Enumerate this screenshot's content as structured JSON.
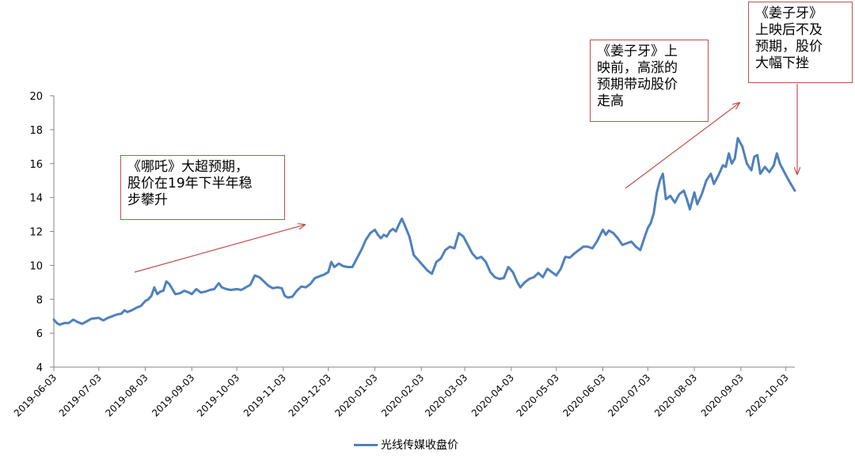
{
  "chart_data": {
    "type": "line",
    "y_axis": {
      "min": 4,
      "max": 20,
      "step": 2,
      "tick_labels": [
        "4",
        "6",
        "8",
        "10",
        "12",
        "14",
        "16",
        "18",
        "20"
      ]
    },
    "x_axis": {
      "start": "2019-06-03",
      "end": "2020-10-09",
      "tick_labels": [
        "2019-06-03",
        "2019-07-03",
        "2019-08-03",
        "2019-09-03",
        "2019-10-03",
        "2019-11-03",
        "2019-12-03",
        "2020-01-03",
        "2020-02-03",
        "2020-03-03",
        "2020-04-03",
        "2020-05-03",
        "2020-06-03",
        "2020-07-03",
        "2020-08-03",
        "2020-09-03",
        "2020-10-03"
      ]
    },
    "grid": false,
    "legend_position": "bottom",
    "series": [
      {
        "name": "光线传媒收盘价",
        "color": "#4f81bd",
        "points": [
          [
            "2019-06-03",
            6.8
          ],
          [
            "2019-06-05",
            6.6
          ],
          [
            "2019-06-07",
            6.5
          ],
          [
            "2019-06-10",
            6.6
          ],
          [
            "2019-06-13",
            6.6
          ],
          [
            "2019-06-16",
            6.8
          ],
          [
            "2019-06-19",
            6.65
          ],
          [
            "2019-06-22",
            6.55
          ],
          [
            "2019-06-25",
            6.7
          ],
          [
            "2019-06-28",
            6.85
          ],
          [
            "2019-07-03",
            6.9
          ],
          [
            "2019-07-06",
            6.75
          ],
          [
            "2019-07-09",
            6.9
          ],
          [
            "2019-07-12",
            7.0
          ],
          [
            "2019-07-15",
            7.1
          ],
          [
            "2019-07-18",
            7.15
          ],
          [
            "2019-07-20",
            7.35
          ],
          [
            "2019-07-22",
            7.25
          ],
          [
            "2019-07-25",
            7.35
          ],
          [
            "2019-07-28",
            7.5
          ],
          [
            "2019-07-31",
            7.6
          ],
          [
            "2019-08-03",
            7.9
          ],
          [
            "2019-08-05",
            8.0
          ],
          [
            "2019-08-07",
            8.2
          ],
          [
            "2019-08-09",
            8.7
          ],
          [
            "2019-08-11",
            8.3
          ],
          [
            "2019-08-13",
            8.45
          ],
          [
            "2019-08-15",
            8.5
          ],
          [
            "2019-08-17",
            9.05
          ],
          [
            "2019-08-19",
            8.9
          ],
          [
            "2019-08-21",
            8.6
          ],
          [
            "2019-08-23",
            8.3
          ],
          [
            "2019-08-26",
            8.35
          ],
          [
            "2019-08-29",
            8.5
          ],
          [
            "2019-09-01",
            8.4
          ],
          [
            "2019-09-03",
            8.3
          ],
          [
            "2019-09-06",
            8.6
          ],
          [
            "2019-09-09",
            8.4
          ],
          [
            "2019-09-12",
            8.45
          ],
          [
            "2019-09-15",
            8.55
          ],
          [
            "2019-09-18",
            8.6
          ],
          [
            "2019-09-21",
            8.95
          ],
          [
            "2019-09-23",
            8.7
          ],
          [
            "2019-09-26",
            8.6
          ],
          [
            "2019-09-29",
            8.55
          ],
          [
            "2019-10-03",
            8.6
          ],
          [
            "2019-10-06",
            8.55
          ],
          [
            "2019-10-09",
            8.7
          ],
          [
            "2019-10-12",
            8.85
          ],
          [
            "2019-10-15",
            9.4
          ],
          [
            "2019-10-18",
            9.3
          ],
          [
            "2019-10-21",
            9.05
          ],
          [
            "2019-10-24",
            8.8
          ],
          [
            "2019-10-27",
            8.65
          ],
          [
            "2019-10-30",
            8.7
          ],
          [
            "2019-11-02",
            8.65
          ],
          [
            "2019-11-04",
            8.2
          ],
          [
            "2019-11-06",
            8.1
          ],
          [
            "2019-11-09",
            8.15
          ],
          [
            "2019-11-12",
            8.5
          ],
          [
            "2019-11-15",
            8.75
          ],
          [
            "2019-11-18",
            8.7
          ],
          [
            "2019-11-21",
            8.9
          ],
          [
            "2019-11-24",
            9.25
          ],
          [
            "2019-11-27",
            9.35
          ],
          [
            "2019-11-30",
            9.45
          ],
          [
            "2019-12-03",
            9.6
          ],
          [
            "2019-12-05",
            10.2
          ],
          [
            "2019-12-07",
            9.9
          ],
          [
            "2019-12-10",
            10.1
          ],
          [
            "2019-12-13",
            9.95
          ],
          [
            "2019-12-16",
            9.9
          ],
          [
            "2019-12-19",
            9.9
          ],
          [
            "2019-12-22",
            10.4
          ],
          [
            "2019-12-25",
            10.9
          ],
          [
            "2019-12-28",
            11.5
          ],
          [
            "2019-12-31",
            11.9
          ],
          [
            "2020-01-03",
            12.1
          ],
          [
            "2020-01-05",
            11.8
          ],
          [
            "2020-01-07",
            11.6
          ],
          [
            "2020-01-09",
            11.8
          ],
          [
            "2020-01-11",
            11.7
          ],
          [
            "2020-01-13",
            12.0
          ],
          [
            "2020-01-15",
            12.15
          ],
          [
            "2020-01-17",
            12.0
          ],
          [
            "2020-01-19",
            12.4
          ],
          [
            "2020-01-21",
            12.75
          ],
          [
            "2020-01-23",
            12.35
          ],
          [
            "2020-01-26",
            11.7
          ],
          [
            "2020-01-29",
            10.6
          ],
          [
            "2020-02-01",
            10.3
          ],
          [
            "2020-02-04",
            10.0
          ],
          [
            "2020-02-07",
            9.7
          ],
          [
            "2020-02-10",
            9.5
          ],
          [
            "2020-02-13",
            10.2
          ],
          [
            "2020-02-16",
            10.4
          ],
          [
            "2020-02-19",
            10.9
          ],
          [
            "2020-02-22",
            11.1
          ],
          [
            "2020-02-25",
            11.0
          ],
          [
            "2020-02-28",
            11.9
          ],
          [
            "2020-03-02",
            11.7
          ],
          [
            "2020-03-05",
            11.2
          ],
          [
            "2020-03-08",
            10.7
          ],
          [
            "2020-03-11",
            10.4
          ],
          [
            "2020-03-14",
            10.5
          ],
          [
            "2020-03-17",
            10.2
          ],
          [
            "2020-03-20",
            9.6
          ],
          [
            "2020-03-23",
            9.3
          ],
          [
            "2020-03-26",
            9.2
          ],
          [
            "2020-03-29",
            9.25
          ],
          [
            "2020-04-01",
            9.9
          ],
          [
            "2020-04-04",
            9.6
          ],
          [
            "2020-04-07",
            9.0
          ],
          [
            "2020-04-09",
            8.7
          ],
          [
            "2020-04-12",
            9.0
          ],
          [
            "2020-04-15",
            9.2
          ],
          [
            "2020-04-18",
            9.3
          ],
          [
            "2020-04-21",
            9.55
          ],
          [
            "2020-04-24",
            9.3
          ],
          [
            "2020-04-27",
            9.8
          ],
          [
            "2020-04-30",
            9.6
          ],
          [
            "2020-05-03",
            9.4
          ],
          [
            "2020-05-06",
            9.8
          ],
          [
            "2020-05-09",
            10.5
          ],
          [
            "2020-05-12",
            10.45
          ],
          [
            "2020-05-15",
            10.7
          ],
          [
            "2020-05-18",
            10.9
          ],
          [
            "2020-05-21",
            11.1
          ],
          [
            "2020-05-24",
            11.1
          ],
          [
            "2020-05-27",
            11.0
          ],
          [
            "2020-05-30",
            11.4
          ],
          [
            "2020-06-03",
            12.1
          ],
          [
            "2020-06-05",
            11.8
          ],
          [
            "2020-06-07",
            12.05
          ],
          [
            "2020-06-10",
            11.9
          ],
          [
            "2020-06-13",
            11.6
          ],
          [
            "2020-06-16",
            11.2
          ],
          [
            "2020-06-19",
            11.3
          ],
          [
            "2020-06-22",
            11.4
          ],
          [
            "2020-06-25",
            11.1
          ],
          [
            "2020-06-28",
            10.9
          ],
          [
            "2020-07-01",
            11.7
          ],
          [
            "2020-07-03",
            12.2
          ],
          [
            "2020-07-05",
            12.5
          ],
          [
            "2020-07-07",
            13.1
          ],
          [
            "2020-07-09",
            14.3
          ],
          [
            "2020-07-11",
            15.0
          ],
          [
            "2020-07-13",
            15.4
          ],
          [
            "2020-07-15",
            13.9
          ],
          [
            "2020-07-18",
            14.1
          ],
          [
            "2020-07-21",
            13.7
          ],
          [
            "2020-07-24",
            14.2
          ],
          [
            "2020-07-27",
            14.4
          ],
          [
            "2020-07-29",
            13.9
          ],
          [
            "2020-07-31",
            13.3
          ],
          [
            "2020-08-03",
            14.3
          ],
          [
            "2020-08-05",
            13.6
          ],
          [
            "2020-08-08",
            14.2
          ],
          [
            "2020-08-11",
            15.0
          ],
          [
            "2020-08-14",
            15.4
          ],
          [
            "2020-08-16",
            14.8
          ],
          [
            "2020-08-19",
            15.3
          ],
          [
            "2020-08-22",
            15.9
          ],
          [
            "2020-08-24",
            15.8
          ],
          [
            "2020-08-26",
            16.6
          ],
          [
            "2020-08-28",
            16.0
          ],
          [
            "2020-08-30",
            16.3
          ],
          [
            "2020-09-01",
            17.5
          ],
          [
            "2020-09-04",
            17.0
          ],
          [
            "2020-09-07",
            16.0
          ],
          [
            "2020-09-10",
            15.6
          ],
          [
            "2020-09-12",
            16.4
          ],
          [
            "2020-09-14",
            16.5
          ],
          [
            "2020-09-16",
            15.4
          ],
          [
            "2020-09-19",
            15.8
          ],
          [
            "2020-09-22",
            15.5
          ],
          [
            "2020-09-25",
            15.9
          ],
          [
            "2020-09-27",
            16.6
          ],
          [
            "2020-09-29",
            16.0
          ],
          [
            "2020-10-02",
            15.5
          ],
          [
            "2020-10-05",
            15.0
          ],
          [
            "2020-10-09",
            14.4
          ]
        ]
      }
    ],
    "annotations": [
      {
        "text": "《哪吒》大超预期，\n股价在19年下半年稳\n步攀升"
      },
      {
        "text": "《姜子牙》上\n映前，高涨的\n预期带动股价\n走高"
      },
      {
        "text": "《姜子牙》\n上映后不及\n预期，股价\n大幅下挫"
      }
    ],
    "arrow_color": "#c0504d"
  }
}
